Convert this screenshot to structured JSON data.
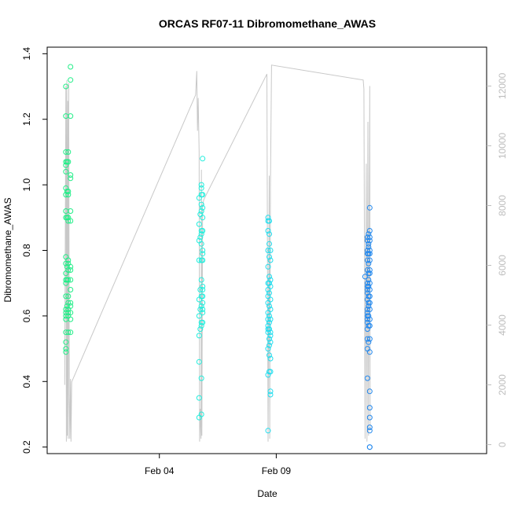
{
  "chart_data": {
    "type": "scatter",
    "title": "ORCAS RF07-11 Dibromomethane_AWAS",
    "xlabel": "Date",
    "ylabel": "Dibromomethane_AWAS",
    "x_unit": "days (Feb)",
    "xlim": [
      30.2,
      49.0
    ],
    "ylim": [
      0.18,
      1.42
    ],
    "x_ticks": [
      {
        "value": 35.0,
        "label": "Feb 04"
      },
      {
        "value": 40.0,
        "label": "Feb 09"
      }
    ],
    "y_ticks": [
      0.2,
      0.4,
      0.6,
      0.8,
      1.0,
      1.2,
      1.4
    ],
    "y2lim": [
      -300,
      13300
    ],
    "y2_ticks": [
      0,
      2000,
      4000,
      6000,
      8000,
      10000,
      12000
    ],
    "altitude_color": "#c8c8c8",
    "grid": false,
    "series": [
      {
        "color": "#22ee88",
        "points": [
          [
            31.0,
            1.3
          ],
          [
            31.0,
            1.21
          ],
          [
            31.0,
            1.1
          ],
          [
            31.0,
            1.07
          ],
          [
            31.0,
            1.06
          ],
          [
            31.0,
            1.04
          ],
          [
            31.0,
            0.99
          ],
          [
            31.0,
            0.97
          ],
          [
            31.0,
            0.92
          ],
          [
            31.0,
            0.9
          ],
          [
            31.0,
            0.78
          ],
          [
            31.0,
            0.76
          ],
          [
            31.0,
            0.73
          ],
          [
            31.0,
            0.71
          ],
          [
            31.0,
            0.7
          ],
          [
            31.0,
            0.66
          ],
          [
            31.0,
            0.62
          ],
          [
            31.0,
            0.61
          ],
          [
            31.0,
            0.6
          ],
          [
            31.0,
            0.59
          ],
          [
            31.0,
            0.55
          ],
          [
            31.0,
            0.52
          ],
          [
            31.0,
            0.5
          ],
          [
            31.0,
            0.49
          ],
          [
            31.05,
            1.07
          ],
          [
            31.05,
            0.98
          ],
          [
            31.05,
            0.9
          ],
          [
            31.05,
            0.75
          ],
          [
            31.05,
            0.71
          ],
          [
            31.05,
            0.63
          ],
          [
            31.1,
            1.1
          ],
          [
            31.1,
            1.07
          ],
          [
            31.1,
            0.98
          ],
          [
            31.1,
            0.97
          ],
          [
            31.1,
            0.9
          ],
          [
            31.1,
            0.89
          ],
          [
            31.1,
            0.77
          ],
          [
            31.1,
            0.76
          ],
          [
            31.1,
            0.74
          ],
          [
            31.1,
            0.71
          ],
          [
            31.1,
            0.66
          ],
          [
            31.1,
            0.64
          ],
          [
            31.1,
            0.62
          ],
          [
            31.1,
            0.61
          ],
          [
            31.1,
            0.6
          ],
          [
            31.1,
            0.55
          ],
          [
            31.2,
            1.36
          ],
          [
            31.2,
            1.32
          ],
          [
            31.2,
            1.21
          ],
          [
            31.2,
            1.03
          ],
          [
            31.2,
            1.02
          ],
          [
            31.2,
            0.92
          ],
          [
            31.2,
            0.89
          ],
          [
            31.2,
            0.75
          ],
          [
            31.2,
            0.74
          ],
          [
            31.2,
            0.71
          ],
          [
            31.2,
            0.68
          ],
          [
            31.2,
            0.64
          ],
          [
            31.2,
            0.63
          ],
          [
            31.2,
            0.61
          ],
          [
            31.2,
            0.59
          ],
          [
            31.2,
            0.55
          ]
        ]
      },
      {
        "color": "#22eedd",
        "points": [
          [
            36.7,
            0.96
          ],
          [
            36.7,
            0.88
          ],
          [
            36.7,
            0.83
          ],
          [
            36.7,
            0.77
          ],
          [
            36.7,
            0.65
          ],
          [
            36.7,
            0.6
          ],
          [
            36.7,
            0.54
          ],
          [
            36.7,
            0.46
          ],
          [
            36.7,
            0.35
          ],
          [
            36.7,
            0.29
          ],
          [
            36.8,
            1.0
          ],
          [
            36.8,
            0.99
          ],
          [
            36.8,
            0.97
          ],
          [
            36.8,
            0.94
          ],
          [
            36.8,
            0.92
          ],
          [
            36.8,
            0.86
          ],
          [
            36.8,
            0.85
          ],
          [
            36.8,
            0.82
          ],
          [
            36.8,
            0.77
          ],
          [
            36.8,
            0.71
          ],
          [
            36.8,
            0.66
          ],
          [
            36.8,
            0.63
          ],
          [
            36.8,
            0.58
          ],
          [
            36.8,
            0.57
          ],
          [
            36.8,
            0.41
          ],
          [
            36.8,
            0.3
          ],
          [
            36.85,
            1.08
          ],
          [
            36.85,
            0.97
          ],
          [
            36.85,
            0.93
          ],
          [
            36.85,
            0.9
          ],
          [
            36.85,
            0.86
          ],
          [
            36.85,
            0.8
          ],
          [
            36.85,
            0.79
          ],
          [
            36.85,
            0.77
          ],
          [
            36.85,
            0.69
          ],
          [
            36.85,
            0.68
          ],
          [
            36.85,
            0.66
          ],
          [
            36.85,
            0.64
          ],
          [
            36.85,
            0.62
          ],
          [
            36.85,
            0.61
          ],
          [
            36.85,
            0.58
          ],
          [
            36.75,
            0.91
          ],
          [
            36.75,
            0.84
          ],
          [
            36.75,
            0.68
          ],
          [
            36.75,
            0.62
          ],
          [
            36.75,
            0.56
          ]
        ]
      },
      {
        "color": "#22ddee",
        "points": [
          [
            39.65,
            0.9
          ],
          [
            39.65,
            0.89
          ],
          [
            39.65,
            0.86
          ],
          [
            39.65,
            0.8
          ],
          [
            39.65,
            0.75
          ],
          [
            39.65,
            0.7
          ],
          [
            39.65,
            0.68
          ],
          [
            39.65,
            0.66
          ],
          [
            39.65,
            0.64
          ],
          [
            39.65,
            0.61
          ],
          [
            39.65,
            0.59
          ],
          [
            39.65,
            0.57
          ],
          [
            39.65,
            0.56
          ],
          [
            39.65,
            0.55
          ],
          [
            39.65,
            0.5
          ],
          [
            39.65,
            0.42
          ],
          [
            39.65,
            0.25
          ],
          [
            39.7,
            0.89
          ],
          [
            39.7,
            0.85
          ],
          [
            39.7,
            0.82
          ],
          [
            39.7,
            0.78
          ],
          [
            39.7,
            0.72
          ],
          [
            39.7,
            0.7
          ],
          [
            39.7,
            0.67
          ],
          [
            39.7,
            0.63
          ],
          [
            39.7,
            0.6
          ],
          [
            39.7,
            0.58
          ],
          [
            39.7,
            0.56
          ],
          [
            39.7,
            0.53
          ],
          [
            39.7,
            0.51
          ],
          [
            39.7,
            0.48
          ],
          [
            39.7,
            0.43
          ],
          [
            39.75,
            0.8
          ],
          [
            39.75,
            0.77
          ],
          [
            39.75,
            0.71
          ],
          [
            39.75,
            0.69
          ],
          [
            39.75,
            0.65
          ],
          [
            39.75,
            0.62
          ],
          [
            39.75,
            0.59
          ],
          [
            39.75,
            0.55
          ],
          [
            39.75,
            0.54
          ],
          [
            39.75,
            0.52
          ],
          [
            39.75,
            0.47
          ],
          [
            39.75,
            0.43
          ],
          [
            39.75,
            0.37
          ],
          [
            39.75,
            0.36
          ]
        ]
      },
      {
        "color": "#2288ee",
        "points": [
          [
            43.8,
            0.72
          ],
          [
            43.9,
            0.84
          ],
          [
            43.9,
            0.83
          ],
          [
            43.9,
            0.8
          ],
          [
            43.9,
            0.79
          ],
          [
            43.9,
            0.77
          ],
          [
            43.9,
            0.74
          ],
          [
            43.9,
            0.7
          ],
          [
            43.9,
            0.69
          ],
          [
            43.9,
            0.68
          ],
          [
            43.9,
            0.67
          ],
          [
            43.9,
            0.65
          ],
          [
            43.9,
            0.62
          ],
          [
            43.9,
            0.61
          ],
          [
            43.9,
            0.6
          ],
          [
            43.9,
            0.59
          ],
          [
            43.9,
            0.58
          ],
          [
            43.9,
            0.56
          ],
          [
            43.9,
            0.53
          ],
          [
            43.9,
            0.5
          ],
          [
            43.9,
            0.41
          ],
          [
            43.95,
            0.85
          ],
          [
            43.95,
            0.82
          ],
          [
            43.95,
            0.81
          ],
          [
            43.95,
            0.79
          ],
          [
            43.95,
            0.76
          ],
          [
            43.95,
            0.73
          ],
          [
            43.95,
            0.71
          ],
          [
            43.95,
            0.69
          ],
          [
            43.95,
            0.66
          ],
          [
            43.95,
            0.64
          ],
          [
            43.95,
            0.63
          ],
          [
            43.95,
            0.6
          ],
          [
            43.95,
            0.57
          ],
          [
            43.95,
            0.52
          ],
          [
            44.0,
            0.93
          ],
          [
            44.0,
            0.86
          ],
          [
            44.0,
            0.84
          ],
          [
            44.0,
            0.83
          ],
          [
            44.0,
            0.8
          ],
          [
            44.0,
            0.79
          ],
          [
            44.0,
            0.77
          ],
          [
            44.0,
            0.74
          ],
          [
            44.0,
            0.73
          ],
          [
            44.0,
            0.7
          ],
          [
            44.0,
            0.68
          ],
          [
            44.0,
            0.66
          ],
          [
            44.0,
            0.64
          ],
          [
            44.0,
            0.62
          ],
          [
            44.0,
            0.59
          ],
          [
            44.0,
            0.57
          ],
          [
            44.0,
            0.53
          ],
          [
            44.0,
            0.49
          ],
          [
            44.0,
            0.37
          ],
          [
            44.0,
            0.32
          ],
          [
            44.0,
            0.29
          ],
          [
            44.0,
            0.26
          ],
          [
            44.0,
            0.25
          ],
          [
            44.0,
            0.2
          ],
          [
            44.0,
            0.2
          ]
        ]
      }
    ],
    "altitude_trace": [
      [
        30.95,
        2000
      ],
      [
        31.0,
        12000
      ],
      [
        31.02,
        100
      ],
      [
        31.04,
        12200
      ],
      [
        31.06,
        300
      ],
      [
        31.08,
        11500
      ],
      [
        31.1,
        200
      ],
      [
        31.12,
        12100
      ],
      [
        31.15,
        1500
      ],
      [
        31.17,
        200
      ],
      [
        31.2,
        2200
      ],
      [
        31.22,
        100
      ],
      [
        31.25,
        2100
      ],
      [
        36.55,
        11700
      ],
      [
        36.6,
        12500
      ],
      [
        36.63,
        10500
      ],
      [
        36.66,
        11600
      ],
      [
        36.7,
        9800
      ],
      [
        36.72,
        100
      ],
      [
        36.75,
        1200
      ],
      [
        36.78,
        200
      ],
      [
        36.8,
        9200
      ],
      [
        36.82,
        300
      ],
      [
        36.85,
        8000
      ],
      [
        36.9,
        8200
      ],
      [
        39.6,
        12400
      ],
      [
        39.65,
        100
      ],
      [
        39.7,
        9000
      ],
      [
        39.72,
        200
      ],
      [
        39.75,
        8600
      ],
      [
        39.8,
        12700
      ],
      [
        43.72,
        12200
      ],
      [
        43.75,
        11900
      ],
      [
        43.8,
        200
      ],
      [
        43.85,
        9400
      ],
      [
        43.88,
        100
      ],
      [
        43.92,
        10800
      ],
      [
        43.95,
        300
      ],
      [
        44.0,
        12000
      ],
      [
        44.02,
        500
      ]
    ]
  }
}
